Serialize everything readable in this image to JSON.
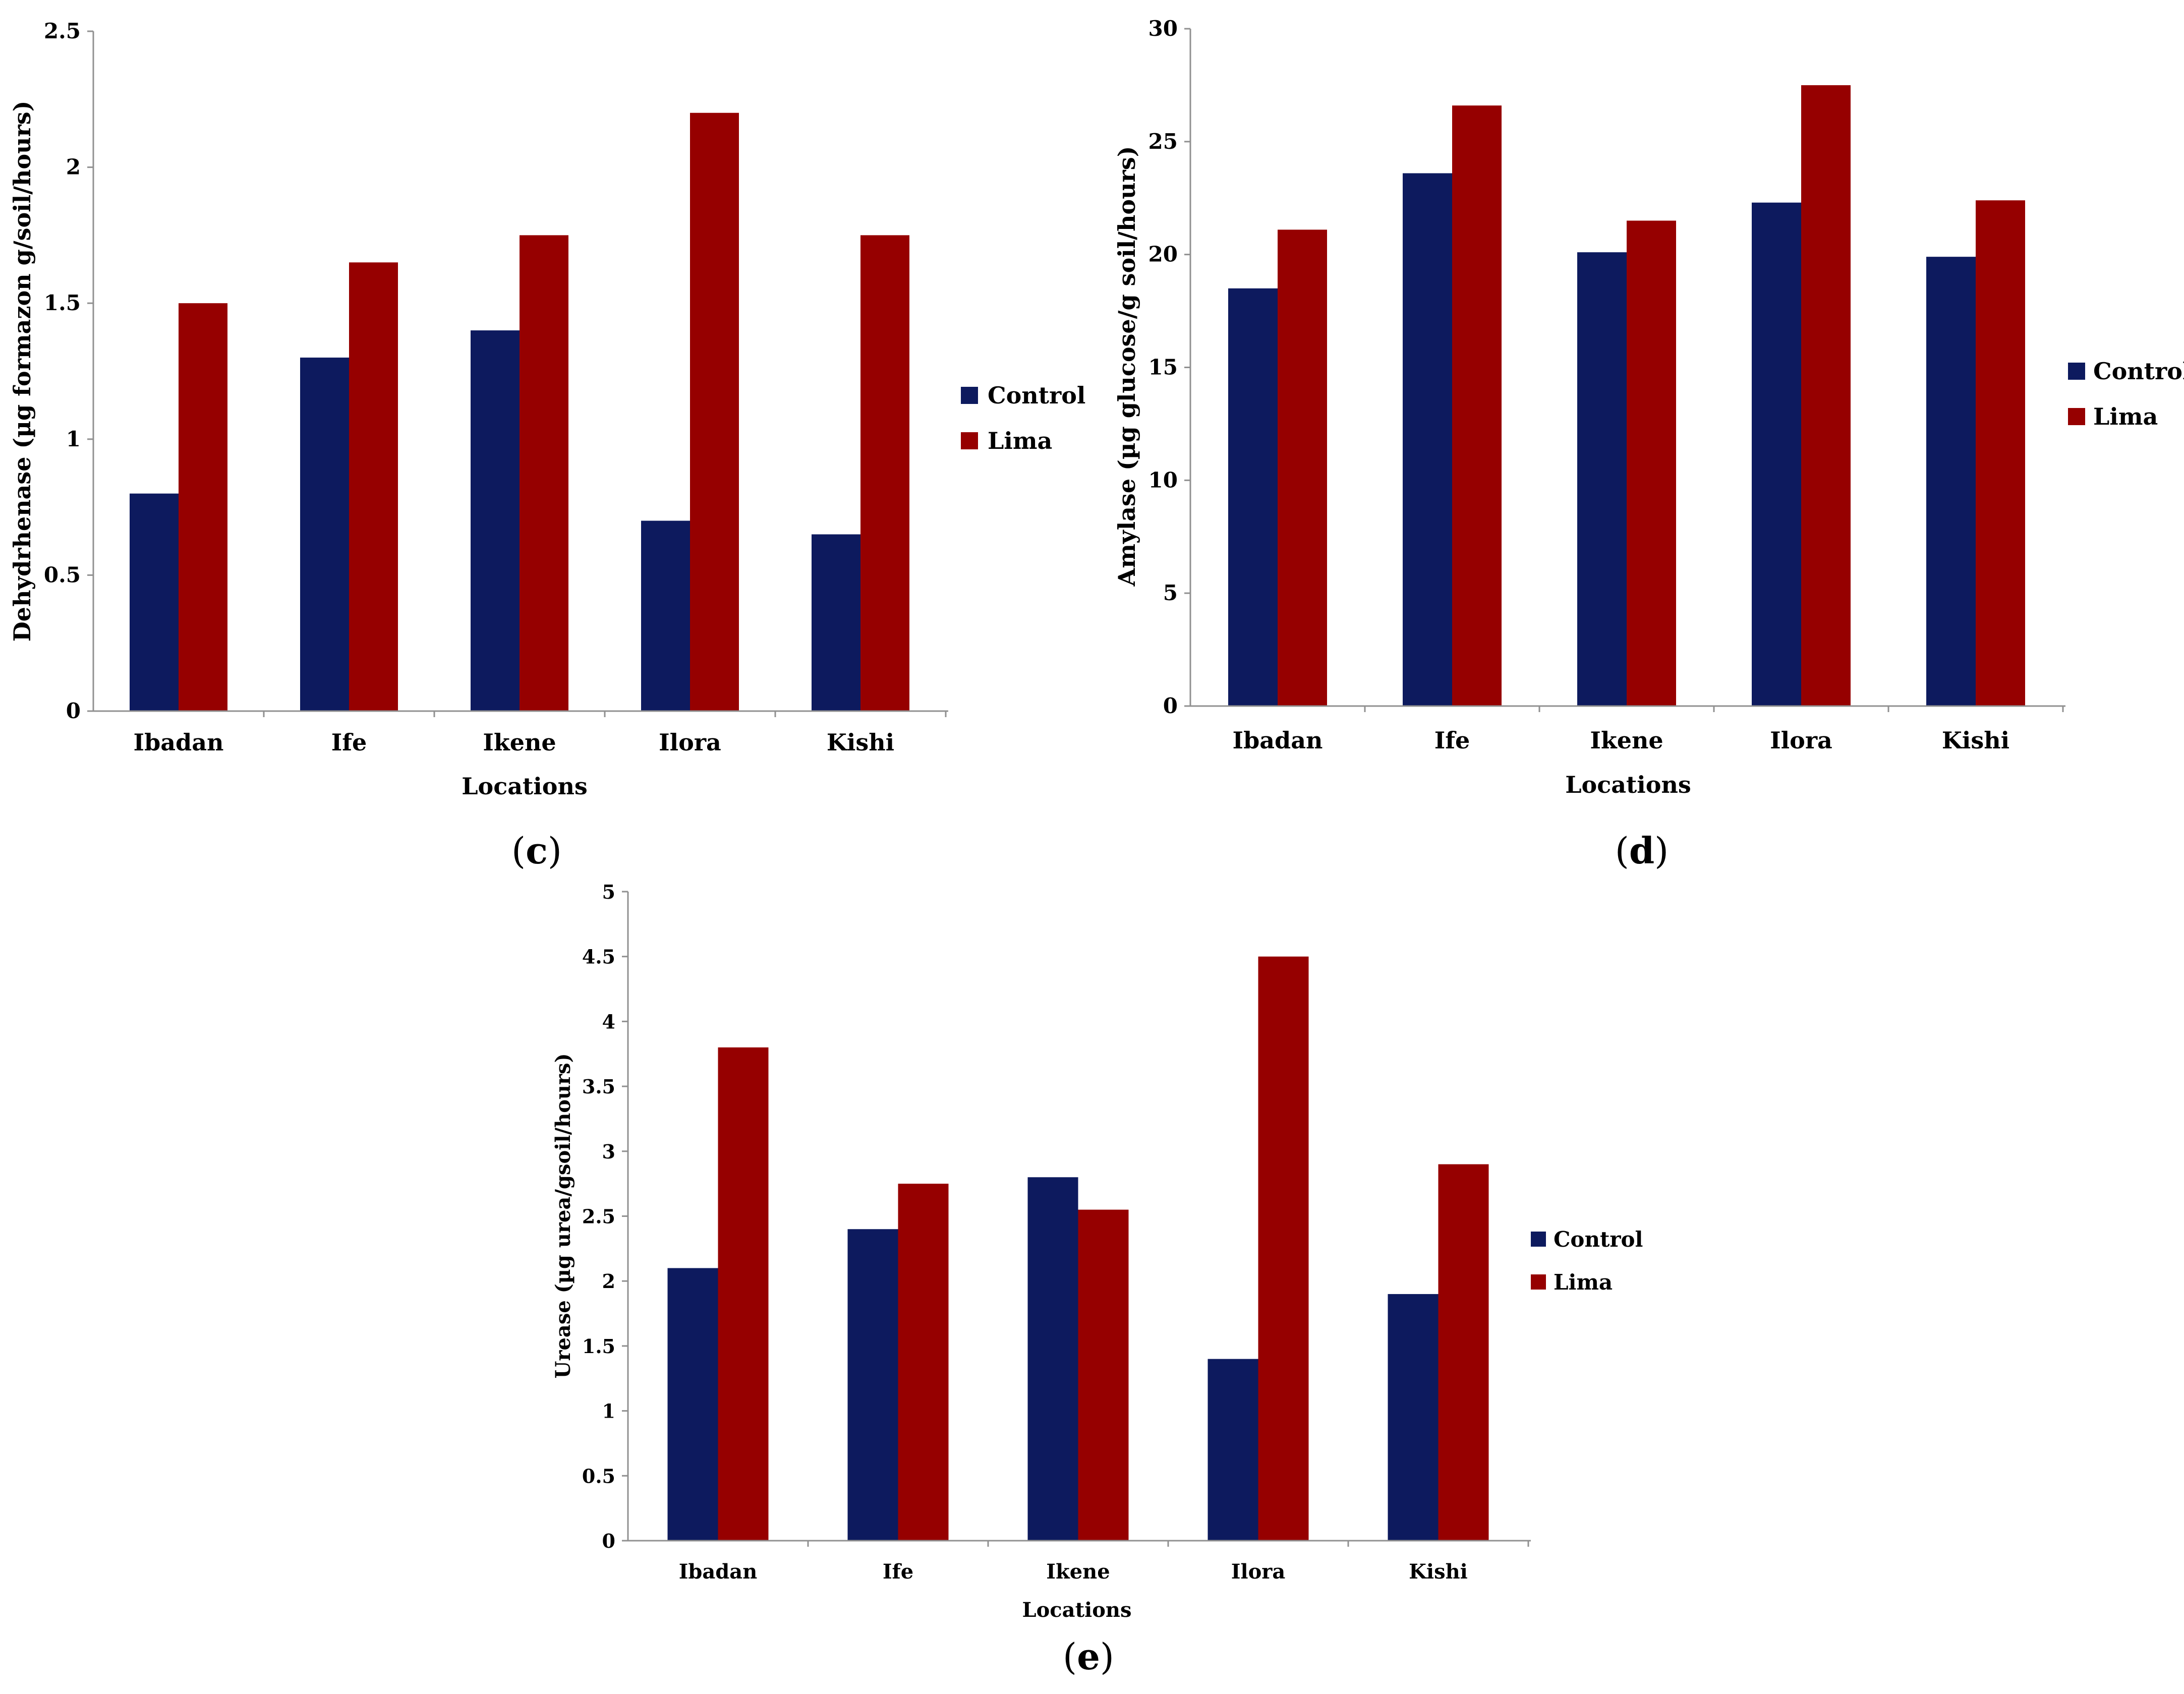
{
  "colors": {
    "control": "#0d1a5e",
    "lima": "#960000",
    "axis": "#909090"
  },
  "chart_data": [
    {
      "id": "c",
      "type": "bar",
      "panel_label": "(c)",
      "panel_letter": "c",
      "title": "",
      "categories": [
        "Ibadan",
        "Ife",
        "Ikene",
        "Ilora",
        "Kishi"
      ],
      "series": [
        {
          "name": "Control",
          "values": [
            0.8,
            1.3,
            1.4,
            0.7,
            0.65
          ]
        },
        {
          "name": "Lima",
          "values": [
            1.5,
            1.65,
            1.75,
            2.2,
            1.75
          ]
        }
      ],
      "xlabel": "Locations",
      "ylabel": "Dehydrhenase (µg formazon g/soil/hours)",
      "ylim": [
        0,
        2.5
      ],
      "yticks": [
        "0",
        "0.5",
        "1",
        "1.5",
        "2",
        "2.5"
      ],
      "legend": [
        "Control",
        "Lima"
      ]
    },
    {
      "id": "d",
      "type": "bar",
      "panel_label": "(d)",
      "panel_letter": "d",
      "title": "",
      "categories": [
        "Ibadan",
        "Ife",
        "Ikene",
        "Ilora",
        "Kishi"
      ],
      "series": [
        {
          "name": "Control",
          "values": [
            18.5,
            23.6,
            20.1,
            22.3,
            19.9
          ]
        },
        {
          "name": "Lima",
          "values": [
            21.1,
            26.6,
            21.5,
            27.5,
            22.4
          ]
        }
      ],
      "xlabel": "Locations",
      "ylabel": "Amylase (µg glucose/g soil/hours)",
      "ylim": [
        0,
        30
      ],
      "yticks": [
        "0",
        "5",
        "10",
        "15",
        "20",
        "25",
        "30"
      ],
      "legend": [
        "Control",
        "Lima"
      ]
    },
    {
      "id": "e",
      "type": "bar",
      "panel_label": "(e)",
      "panel_letter": "e",
      "title": "",
      "categories": [
        "Ibadan",
        "Ife",
        "Ikene",
        "Ilora",
        "Kishi"
      ],
      "series": [
        {
          "name": "Control",
          "values": [
            2.1,
            2.4,
            2.8,
            1.4,
            1.9
          ]
        },
        {
          "name": "Lima",
          "values": [
            3.8,
            2.75,
            2.55,
            4.5,
            2.9
          ]
        }
      ],
      "xlabel": "Locations",
      "ylabel": "Urease (µg urea/gsoil/hours)",
      "ylim": [
        0,
        5
      ],
      "yticks": [
        "0",
        "0.5",
        "1",
        "1.5",
        "2",
        "2.5",
        "3",
        "3.5",
        "4",
        "4.5",
        "5"
      ],
      "legend": [
        "Control",
        "Lima"
      ]
    }
  ]
}
